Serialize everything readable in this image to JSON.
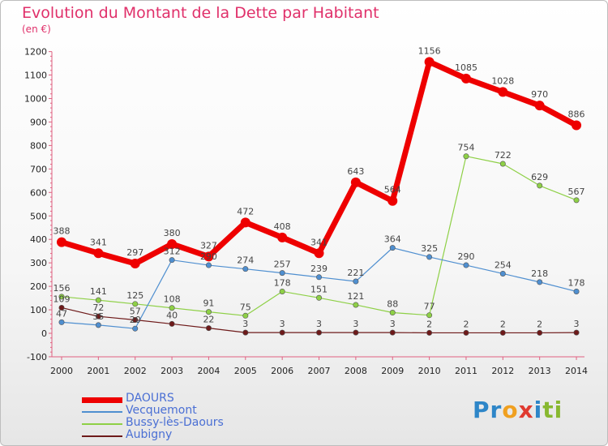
{
  "title": "Evolution du Montant de la Dette par Habitant",
  "subtitle": "(en €)",
  "brand": {
    "letters": [
      {
        "ch": "P",
        "color": "#2e86c8"
      },
      {
        "ch": "r",
        "color": "#2e86c8"
      },
      {
        "ch": "o",
        "color": "#f0a020"
      },
      {
        "ch": "x",
        "color": "#e03a30"
      },
      {
        "ch": "i",
        "color": "#2e86c8"
      },
      {
        "ch": "t",
        "color": "#88b830"
      },
      {
        "ch": "i",
        "color": "#88b830"
      }
    ]
  },
  "chart_data": {
    "type": "line",
    "title": "Evolution du Montant de la Dette par Habitant",
    "subtitle": "(en €)",
    "x": [
      "2000",
      "2001",
      "2002",
      "2003",
      "2004",
      "2005",
      "2006",
      "2007",
      "2008",
      "2009",
      "2010",
      "2011",
      "2012",
      "2013",
      "2014"
    ],
    "ylim": [
      -100,
      1200
    ],
    "yticks": [
      "-100",
      "0",
      "100",
      "200",
      "300",
      "400",
      "500",
      "600",
      "700",
      "800",
      "900",
      "1000",
      "1100",
      "1200"
    ],
    "grid": false,
    "legend_position": "bottom-left",
    "series": [
      {
        "name": "DAOURS",
        "color": "#ee0000",
        "values": [
          388,
          341,
          297,
          380,
          327,
          472,
          408,
          341,
          643,
          564,
          1156,
          1085,
          1028,
          970,
          886
        ],
        "labels": [
          "388",
          "341",
          "297",
          "380",
          "327",
          "472",
          "408",
          "341",
          "643",
          "564",
          "1156",
          "1085",
          "1028",
          "970",
          "886"
        ]
      },
      {
        "name": "Vecquemont",
        "color": "#4f8fd0",
        "values": [
          47,
          35,
          20,
          312,
          290,
          274,
          257,
          239,
          221,
          364,
          325,
          290,
          254,
          218,
          178
        ],
        "labels": [
          "47",
          "35",
          "20",
          "312",
          "290",
          "274",
          "257",
          "239",
          "221",
          "364",
          "325",
          "290",
          "254",
          "218",
          "178"
        ]
      },
      {
        "name": "Bussy-lès-Daours",
        "color": "#8ed046",
        "values": [
          156,
          141,
          125,
          108,
          91,
          75,
          178,
          151,
          121,
          88,
          77,
          754,
          722,
          629,
          567
        ],
        "labels": [
          "156",
          "141",
          "125",
          "108",
          "91",
          "75",
          "178",
          "151",
          "121",
          "88",
          "77",
          "754",
          "722",
          "629",
          "567"
        ]
      },
      {
        "name": "Aubigny",
        "color": "#6e1a1a",
        "values": [
          109,
          72,
          57,
          40,
          22,
          3,
          3,
          3,
          3,
          3,
          2,
          2,
          2,
          2,
          3
        ],
        "labels": [
          "109",
          "72",
          "57",
          "40",
          "22",
          "3",
          "3",
          "3",
          "3",
          "3",
          "2",
          "2",
          "2",
          "2",
          "3"
        ]
      }
    ]
  }
}
